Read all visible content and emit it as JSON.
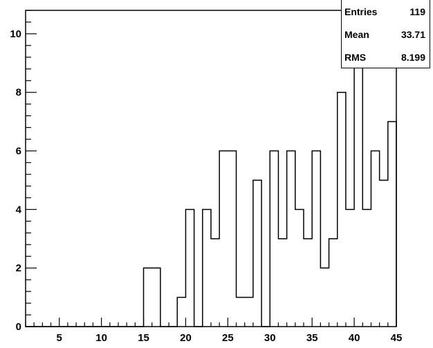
{
  "chart_data": {
    "type": "histogram",
    "bin_edges_start": 1.0,
    "bin_width": 1.0,
    "values": [
      0,
      0,
      0,
      0,
      0,
      0,
      0,
      0,
      0,
      0,
      0,
      0,
      0,
      0,
      2,
      2,
      0,
      0,
      1,
      4,
      0,
      4,
      3,
      6,
      6,
      1,
      1,
      5,
      0,
      6,
      3,
      6,
      4,
      3,
      6,
      2,
      3,
      8,
      4,
      10,
      4,
      6,
      5,
      7
    ],
    "xlim": [
      1,
      45
    ],
    "ylim": [
      0,
      10.8
    ],
    "x_ticks": [
      5,
      10,
      15,
      20,
      25,
      30,
      35,
      40,
      45
    ],
    "y_ticks": [
      0,
      2,
      4,
      6,
      8,
      10
    ],
    "grid": false,
    "stats": [
      {
        "label": "Entries",
        "value": "119"
      },
      {
        "label": "Mean",
        "value": "33.71"
      },
      {
        "label": "RMS",
        "value": "8.199"
      }
    ]
  }
}
